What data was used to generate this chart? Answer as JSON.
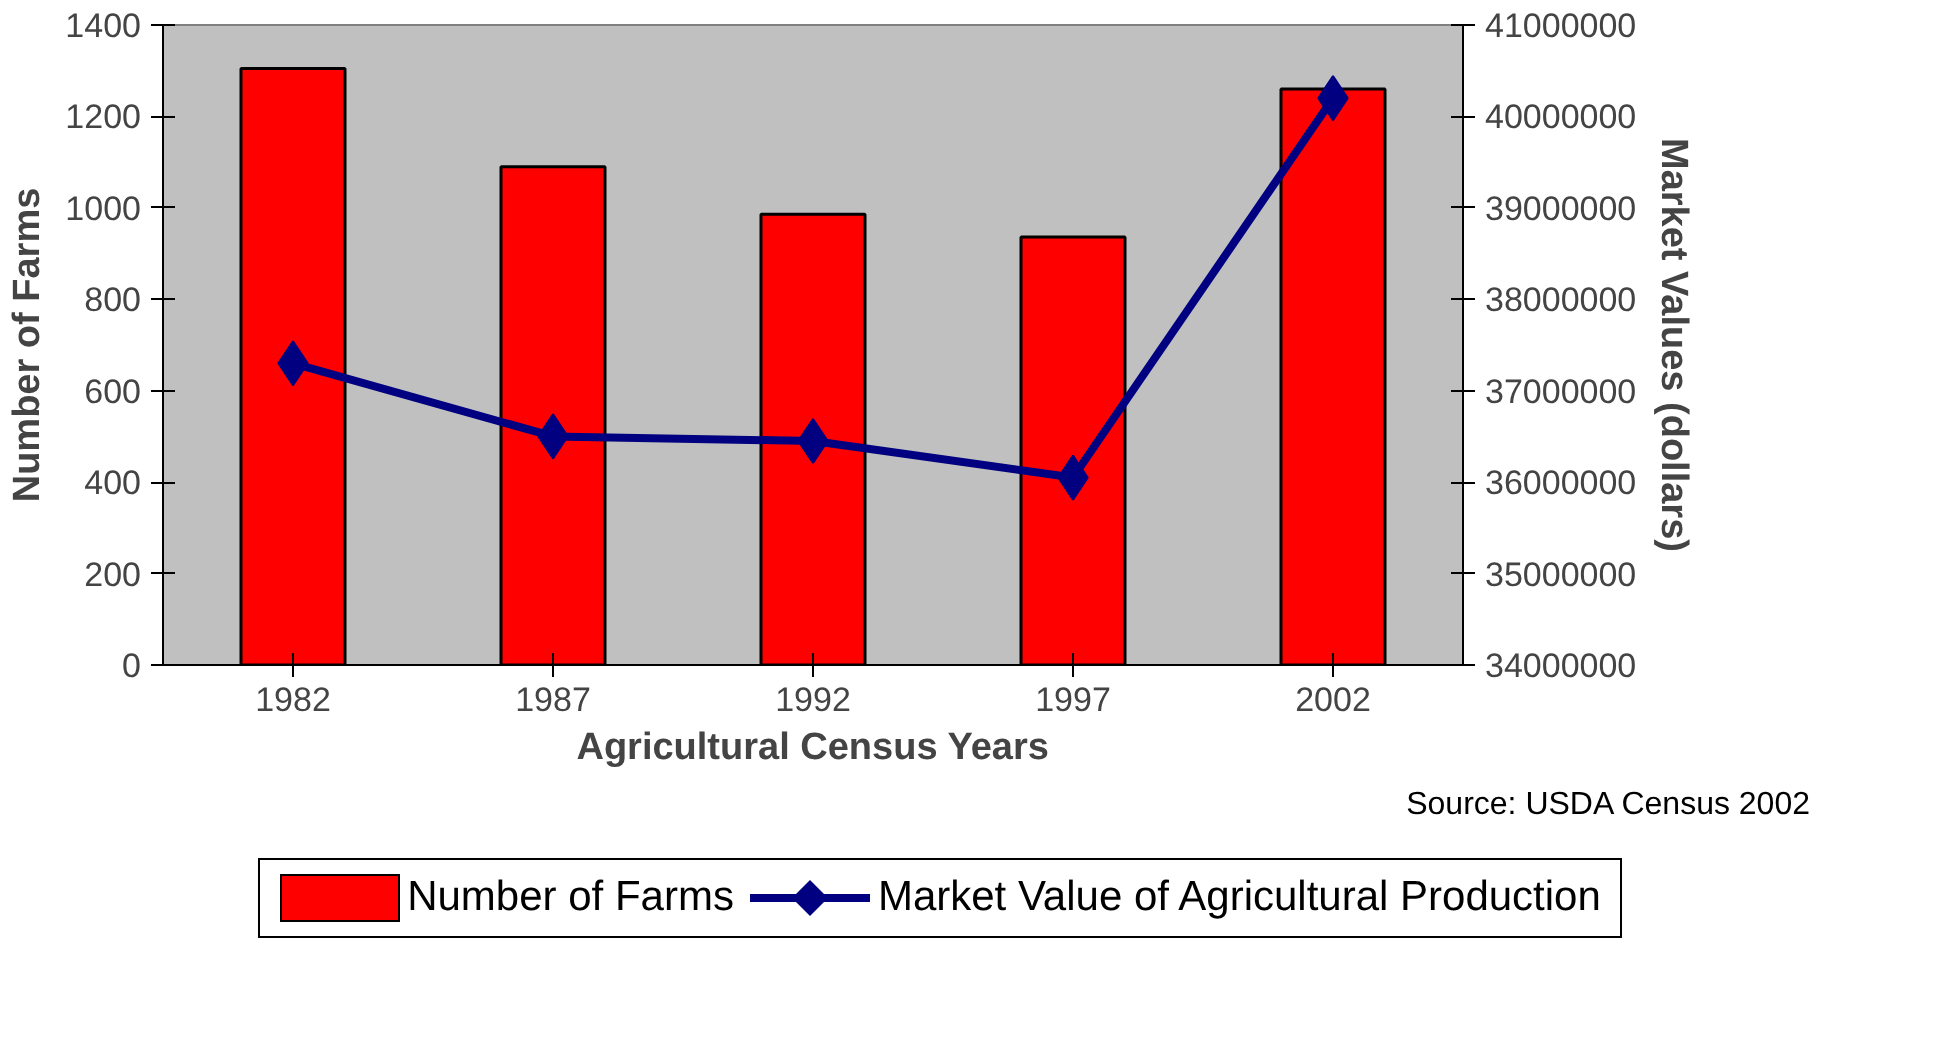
{
  "chart_data": {
    "type": "bar",
    "xlabel": "Agricultural Census Years",
    "ylabel": "Number of Farms",
    "y2label": "Market Values (dollars)",
    "categories": [
      "1982",
      "1987",
      "1992",
      "1997",
      "2002"
    ],
    "series": [
      {
        "name": "Number of Farms",
        "color": "#ff0000",
        "values": [
          1305,
          1090,
          986,
          936,
          1260
        ]
      },
      {
        "name": "Market Value of Agricultural Production",
        "type": "line",
        "axis": "y2",
        "color": "#000080",
        "marker": "diamond",
        "line_style": "solid",
        "values": [
          37300000,
          36500000,
          36450000,
          36050000,
          40200000
        ]
      }
    ],
    "ylim": [
      0,
      1400
    ],
    "yticks": [
      0,
      200,
      400,
      600,
      800,
      1000,
      1200,
      1400
    ],
    "y2lim": [
      34000000,
      41000000
    ],
    "y2ticks": [
      34000000,
      35000000,
      36000000,
      37000000,
      38000000,
      39000000,
      40000000,
      41000000
    ],
    "grid": false,
    "legend": "bottom",
    "annotations": [
      "Source: USDA Census 2002"
    ]
  }
}
